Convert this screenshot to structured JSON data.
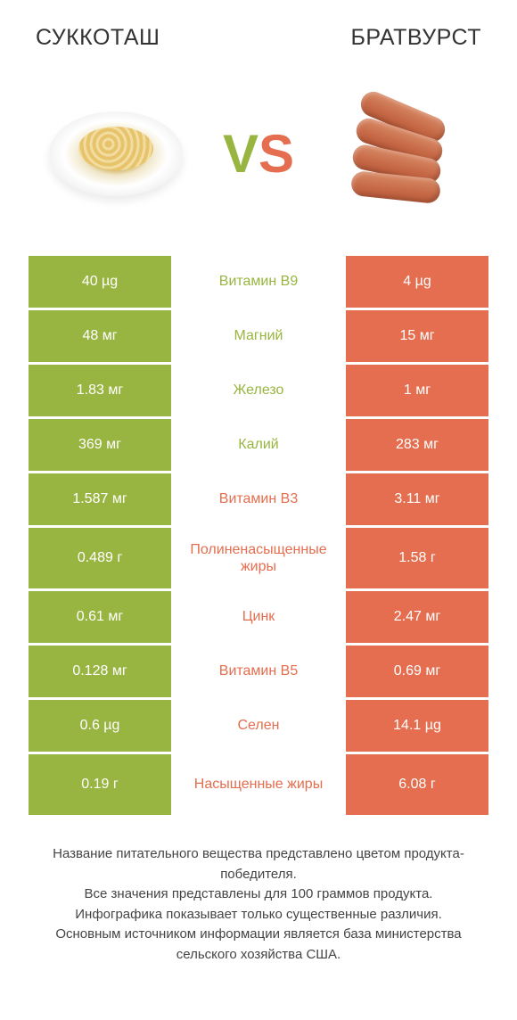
{
  "colors": {
    "green": "#99b541",
    "orange": "#e46e4f",
    "text": "#333333"
  },
  "header": {
    "left": "СУККОТАШ",
    "right": "БРАТВУРСТ"
  },
  "vs": {
    "label": "VS",
    "v_color": "#99b541",
    "s_color": "#e46e4f"
  },
  "rows": [
    {
      "left": "40 µg",
      "mid": "Витамин B9",
      "right": "4 µg",
      "winner": "left",
      "tall": false
    },
    {
      "left": "48 мг",
      "mid": "Магний",
      "right": "15 мг",
      "winner": "left",
      "tall": false
    },
    {
      "left": "1.83 мг",
      "mid": "Железо",
      "right": "1 мг",
      "winner": "left",
      "tall": false
    },
    {
      "left": "369 мг",
      "mid": "Калий",
      "right": "283 мг",
      "winner": "left",
      "tall": false
    },
    {
      "left": "1.587 мг",
      "mid": "Витамин B3",
      "right": "3.11 мг",
      "winner": "right",
      "tall": false
    },
    {
      "left": "0.489 г",
      "mid": "Полиненасыщенные жиры",
      "right": "1.58 г",
      "winner": "right",
      "tall": true
    },
    {
      "left": "0.61 мг",
      "mid": "Цинк",
      "right": "2.47 мг",
      "winner": "right",
      "tall": false
    },
    {
      "left": "0.128 мг",
      "mid": "Витамин B5",
      "right": "0.69 мг",
      "winner": "right",
      "tall": false
    },
    {
      "left": "0.6 µg",
      "mid": "Селен",
      "right": "14.1 µg",
      "winner": "right",
      "tall": false
    },
    {
      "left": "0.19 г",
      "mid": "Насыщенные жиры",
      "right": "6.08 г",
      "winner": "right",
      "tall": true
    }
  ],
  "footer": {
    "line1": "Название питательного вещества представлено цветом продукта-победителя.",
    "line2": "Все значения представлены для 100 граммов продукта.",
    "line3": "Инфографика показывает только существенные различия.",
    "line4": "Основным источником информации является база министерства сельского хозяйства США."
  }
}
